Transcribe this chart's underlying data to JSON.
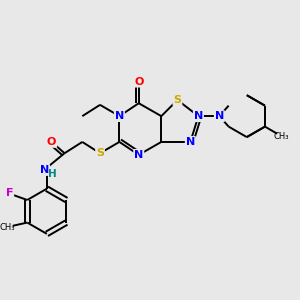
{
  "bg_color": "#e8e8e8",
  "bond_color": "#000000",
  "atom_colors": {
    "N": "#0000ff",
    "O": "#ff0000",
    "S": "#ccaa00",
    "F": "#cc00cc",
    "H": "#008888",
    "C": "#000000"
  }
}
